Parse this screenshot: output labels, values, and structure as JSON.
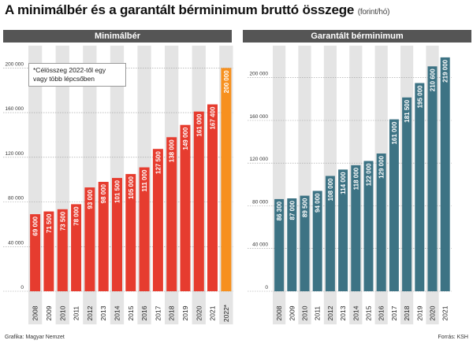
{
  "title": "A minimálbér és a garantált bérminimum bruttó összege",
  "title_unit": "(forint/hó)",
  "note": "*Célösszeg 2022-től egy vagy több lépcsőben",
  "footer_left": "Grafika: Magyar Nemzet",
  "footer_right": "Forrás: KSH",
  "colors": {
    "red": "#e63c2f",
    "orange": "#f7901e",
    "teal": "#3d7384",
    "stripe": "#e4e4e4",
    "header": "#555555"
  },
  "chart_data": [
    {
      "type": "bar",
      "title": "Minimálbér",
      "ylim": [
        0,
        220000
      ],
      "yticks": [
        "0",
        "40 000",
        "80 000",
        "120 000",
        "160 000",
        "200 000"
      ],
      "ytick_values": [
        0,
        40000,
        80000,
        120000,
        160000,
        200000
      ],
      "categories": [
        "2008",
        "2009",
        "2010",
        "2011",
        "2012",
        "2013",
        "2014",
        "2015",
        "2016",
        "2017",
        "2018",
        "2019",
        "2020",
        "2021",
        "2022*"
      ],
      "values": [
        69000,
        71500,
        73500,
        78000,
        93000,
        98000,
        101500,
        105000,
        111000,
        127500,
        138000,
        149000,
        161000,
        167400,
        200000
      ],
      "labels": [
        "69 000",
        "71 500",
        "73 500",
        "78 000",
        "93 000",
        "98 000",
        "101 500",
        "105 000",
        "111 000",
        "127 500",
        "138 000",
        "149 000",
        "161 000",
        "167 400",
        "200 000"
      ],
      "highlight_last": true
    },
    {
      "type": "bar",
      "title": "Garantált bérminimum",
      "ylim": [
        0,
        230000
      ],
      "yticks": [
        "0",
        "40 000",
        "80 000",
        "120 000",
        "160 000",
        "200 000"
      ],
      "ytick_values": [
        0,
        40000,
        80000,
        120000,
        160000,
        200000
      ],
      "categories": [
        "2008",
        "2009",
        "2010",
        "2011",
        "2012",
        "2013",
        "2014",
        "2015",
        "2016",
        "2017",
        "2018",
        "2019",
        "2020",
        "2021"
      ],
      "values": [
        86300,
        87000,
        89500,
        94000,
        108000,
        114000,
        118000,
        122000,
        129000,
        161000,
        181500,
        195000,
        210600,
        219000
      ],
      "labels": [
        "86 300",
        "87 000",
        "89 500",
        "94 000",
        "108 000",
        "114 000",
        "118 000",
        "122 000",
        "129 000",
        "161 000",
        "181 500",
        "195 000",
        "210 600",
        "219 000"
      ],
      "highlight_last": false
    }
  ]
}
